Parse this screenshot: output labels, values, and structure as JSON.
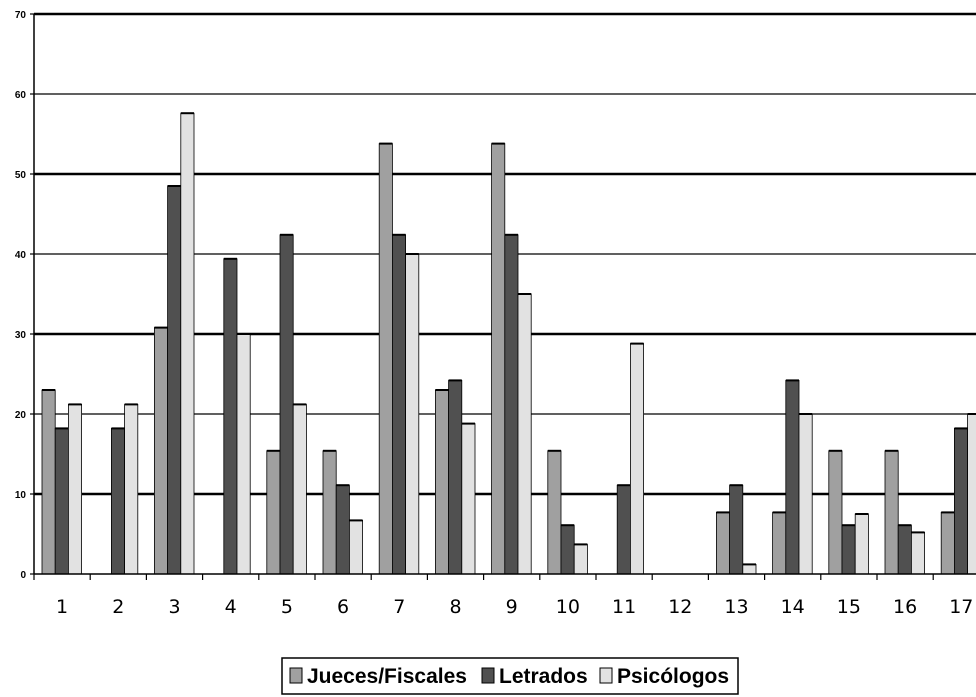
{
  "chart_data": {
    "type": "bar",
    "title": "",
    "xlabel": "",
    "ylabel": "",
    "ylim": [
      0,
      70
    ],
    "yticks": [
      "0",
      "10",
      "20",
      "30",
      "40",
      "50",
      "60",
      "70"
    ],
    "categories": [
      "1",
      "2",
      "3",
      "4",
      "5",
      "6",
      "7",
      "8",
      "9",
      "10",
      "11",
      "12",
      "13",
      "14",
      "15",
      "16",
      "17"
    ],
    "series": [
      {
        "name": "Jueces/Fiscales",
        "color": "#a0a0a0",
        "values": [
          23,
          0,
          30.8,
          0,
          15.4,
          15.4,
          53.8,
          23,
          53.8,
          15.4,
          0,
          0,
          7.7,
          7.7,
          15.4,
          15.4,
          7.7
        ]
      },
      {
        "name": "Letrados",
        "color": "#505050",
        "values": [
          18.2,
          18.2,
          48.5,
          39.4,
          42.4,
          11.1,
          42.4,
          24.2,
          42.4,
          6.1,
          11.1,
          0,
          11.1,
          24.2,
          6.1,
          6.1,
          18.2
        ]
      },
      {
        "name": "Psicólogos",
        "color": "#e2e2e2",
        "values": [
          21.2,
          21.2,
          57.6,
          30,
          21.2,
          6.7,
          40,
          18.8,
          35,
          3.7,
          28.8,
          0,
          1.2,
          20,
          7.5,
          5.2,
          20
        ]
      }
    ],
    "grid": true,
    "legend": "bottom"
  }
}
